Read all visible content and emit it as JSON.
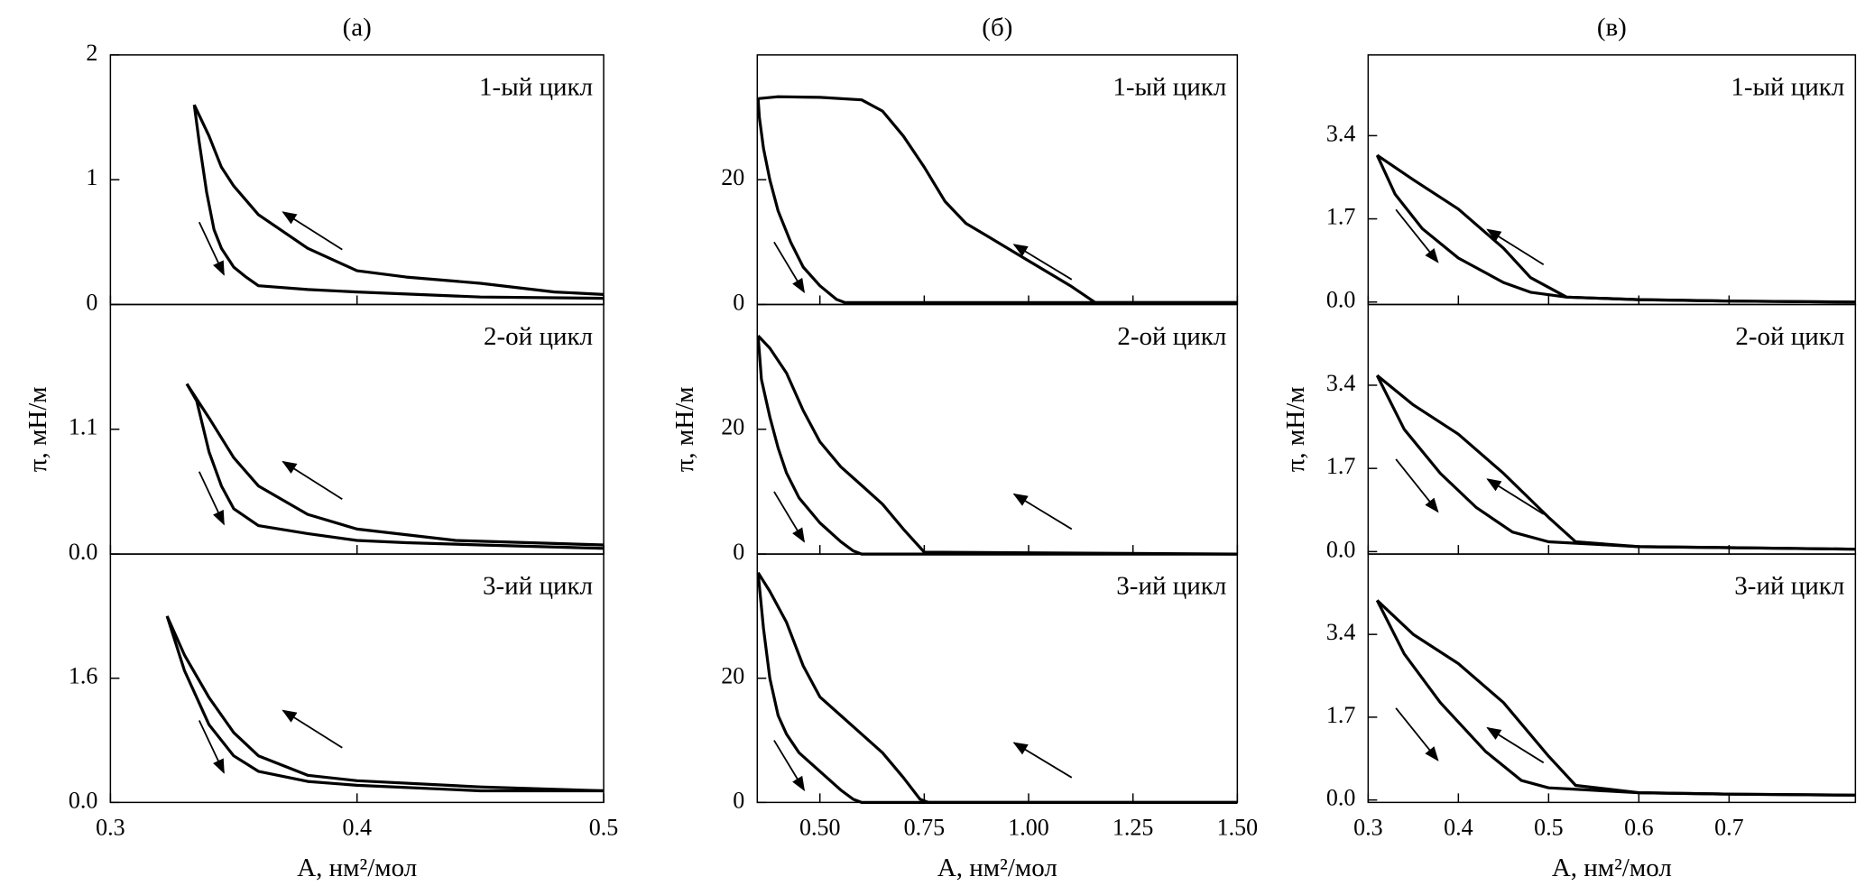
{
  "chart_data": [
    {
      "type": "line",
      "title": "(a)",
      "annotation": "1-ый цикл",
      "xlim": [
        0.3,
        0.5
      ],
      "ylim": [
        0,
        2
      ],
      "yticks": [
        0,
        1,
        2
      ],
      "series": [
        {
          "color": "#000000",
          "x": [
            0.5,
            0.45,
            0.4,
            0.38,
            0.36,
            0.355,
            0.35,
            0.345,
            0.342,
            0.339,
            0.336,
            0.334
          ],
          "values": [
            0.05,
            0.06,
            0.1,
            0.12,
            0.15,
            0.22,
            0.3,
            0.45,
            0.6,
            0.9,
            1.3,
            1.6
          ]
        },
        {
          "color": "#000000",
          "x": [
            0.334,
            0.34,
            0.345,
            0.35,
            0.36,
            0.38,
            0.4,
            0.42,
            0.45,
            0.48,
            0.5
          ],
          "values": [
            1.6,
            1.35,
            1.1,
            0.95,
            0.72,
            0.45,
            0.27,
            0.22,
            0.17,
            0.1,
            0.08
          ]
        }
      ]
    },
    {
      "type": "line",
      "title": "(б)",
      "annotation": "1-ый цикл",
      "xlim": [
        0.35,
        1.5
      ],
      "ylim": [
        0,
        40
      ],
      "yticks": [
        0,
        20
      ],
      "series": [
        {
          "color": "#000000",
          "x": [
            1.5,
            0.56,
            0.54,
            0.5,
            0.46,
            0.43,
            0.4,
            0.38,
            0.365,
            0.355,
            0.352
          ],
          "values": [
            0.3,
            0.3,
            0.8,
            3,
            6,
            10,
            15,
            20,
            25,
            30,
            33
          ]
        },
        {
          "color": "#000000",
          "x": [
            0.352,
            0.4,
            0.5,
            0.6,
            0.65,
            0.7,
            0.75,
            0.8,
            0.85,
            0.9,
            1.0,
            1.1,
            1.16,
            1.5
          ],
          "values": [
            33,
            33.3,
            33.2,
            32.8,
            31,
            27,
            22,
            16.5,
            13,
            11,
            7,
            3,
            0.3,
            0.3
          ]
        }
      ]
    },
    {
      "type": "line",
      "title": "(в)",
      "annotation": "1-ый цикл",
      "xlim": [
        0.3,
        0.84
      ],
      "ylim": [
        -0.05,
        5.05
      ],
      "yticks": [
        {
          "value": 0,
          "label": "0.0"
        },
        1.7,
        3.4
      ],
      "series": [
        {
          "color": "#000000",
          "x": [
            0.84,
            0.7,
            0.6,
            0.52,
            0.48,
            0.45,
            0.4,
            0.36,
            0.33,
            0.31
          ],
          "values": [
            0,
            0.02,
            0.05,
            0.1,
            0.2,
            0.4,
            0.9,
            1.5,
            2.2,
            3.0
          ]
        },
        {
          "color": "#000000",
          "x": [
            0.31,
            0.35,
            0.4,
            0.45,
            0.48,
            0.52,
            0.6,
            0.7,
            0.84
          ],
          "values": [
            3.0,
            2.5,
            1.9,
            1.1,
            0.5,
            0.1,
            0.05,
            0.02,
            0
          ]
        }
      ]
    },
    {
      "type": "line",
      "annotation": "2-ой цикл",
      "ylabel": "π, мН/м",
      "xlim": [
        0.3,
        0.5
      ],
      "ylim": [
        0,
        2.2
      ],
      "yticks": [
        {
          "value": 0,
          "label": "0.0"
        },
        1.1
      ],
      "series": [
        {
          "color": "#000000",
          "x": [
            0.5,
            0.45,
            0.42,
            0.4,
            0.38,
            0.36,
            0.35,
            0.345,
            0.34,
            0.335,
            0.331
          ],
          "values": [
            0.05,
            0.08,
            0.1,
            0.12,
            0.18,
            0.25,
            0.4,
            0.6,
            0.9,
            1.35,
            1.5
          ]
        },
        {
          "color": "#000000",
          "x": [
            0.331,
            0.34,
            0.35,
            0.36,
            0.38,
            0.4,
            0.44,
            0.5
          ],
          "values": [
            1.5,
            1.2,
            0.85,
            0.6,
            0.35,
            0.22,
            0.12,
            0.08
          ]
        }
      ]
    },
    {
      "type": "line",
      "annotation": "2-ой цикл",
      "ylabel": "π, мН/м",
      "xlim": [
        0.35,
        1.5
      ],
      "ylim": [
        0,
        40
      ],
      "yticks": [
        0,
        20
      ],
      "series": [
        {
          "color": "#000000",
          "x": [
            1.5,
            0.6,
            0.58,
            0.55,
            0.5,
            0.45,
            0.42,
            0.4,
            0.38,
            0.36,
            0.352
          ],
          "values": [
            0,
            0,
            0.5,
            2,
            5,
            9,
            13,
            17,
            22,
            28,
            35
          ]
        },
        {
          "color": "#000000",
          "x": [
            0.352,
            0.38,
            0.42,
            0.46,
            0.5,
            0.55,
            0.6,
            0.65,
            0.7,
            0.75,
            1.5
          ],
          "values": [
            35,
            33,
            29,
            23,
            18,
            14,
            11,
            8,
            4,
            0.3,
            0
          ]
        }
      ]
    },
    {
      "type": "line",
      "annotation": "2-ой цикл",
      "ylabel": "π, мН/м",
      "xlim": [
        0.3,
        0.84
      ],
      "ylim": [
        -0.05,
        5.05
      ],
      "yticks": [
        {
          "value": 0,
          "label": "0.0"
        },
        1.7,
        3.4
      ],
      "series": [
        {
          "color": "#000000",
          "x": [
            0.84,
            0.7,
            0.6,
            0.55,
            0.5,
            0.46,
            0.42,
            0.38,
            0.34,
            0.31
          ],
          "values": [
            0.05,
            0.08,
            0.1,
            0.15,
            0.2,
            0.4,
            0.9,
            1.6,
            2.5,
            3.6
          ]
        },
        {
          "color": "#000000",
          "x": [
            0.31,
            0.35,
            0.4,
            0.45,
            0.5,
            0.53,
            0.6,
            0.7,
            0.84
          ],
          "values": [
            3.6,
            3.0,
            2.4,
            1.6,
            0.7,
            0.2,
            0.1,
            0.08,
            0.05
          ]
        }
      ]
    },
    {
      "type": "line",
      "annotation": "3-ий цикл",
      "xlabel": "A, нм²/мол",
      "xlim": [
        0.3,
        0.5
      ],
      "ylim": [
        0,
        3.2
      ],
      "yticks": [
        {
          "value": 0,
          "label": "0.0"
        },
        1.6
      ],
      "xticks": [
        0.3,
        0.4,
        0.5
      ],
      "series": [
        {
          "color": "#000000",
          "x": [
            0.5,
            0.45,
            0.4,
            0.38,
            0.36,
            0.35,
            0.34,
            0.33,
            0.323
          ],
          "values": [
            0.15,
            0.15,
            0.22,
            0.27,
            0.4,
            0.6,
            1.0,
            1.7,
            2.4
          ]
        },
        {
          "color": "#000000",
          "x": [
            0.323,
            0.33,
            0.34,
            0.35,
            0.36,
            0.38,
            0.4,
            0.45,
            0.5
          ],
          "values": [
            2.4,
            1.9,
            1.35,
            0.9,
            0.6,
            0.35,
            0.28,
            0.2,
            0.15
          ]
        }
      ]
    },
    {
      "type": "line",
      "annotation": "3-ий цикл",
      "xlabel": "A, нм²/мол",
      "xlim": [
        0.35,
        1.5
      ],
      "ylim": [
        0,
        40
      ],
      "yticks": [
        0,
        20
      ],
      "xticks": [
        {
          "value": 0.5,
          "label": "0.50"
        },
        0.75,
        {
          "value": 1,
          "label": "1.00"
        },
        1.25,
        {
          "value": 1.5,
          "label": "1.50"
        }
      ],
      "series": [
        {
          "color": "#000000",
          "x": [
            1.5,
            0.6,
            0.58,
            0.55,
            0.5,
            0.45,
            0.42,
            0.4,
            0.38,
            0.365,
            0.352
          ],
          "values": [
            0,
            0,
            0.5,
            2,
            5,
            8,
            11,
            14,
            20,
            28,
            37
          ]
        },
        {
          "color": "#000000",
          "x": [
            0.352,
            0.38,
            0.42,
            0.46,
            0.5,
            0.55,
            0.6,
            0.65,
            0.7,
            0.74,
            0.76,
            1.5
          ],
          "values": [
            37,
            34,
            29,
            22,
            17,
            14,
            11,
            8,
            4,
            0.5,
            0,
            0
          ]
        }
      ]
    },
    {
      "type": "line",
      "annotation": "3-ий цикл",
      "xlabel": "A, нм²/мол",
      "xlim": [
        0.3,
        0.84
      ],
      "ylim": [
        -0.05,
        5.05
      ],
      "yticks": [
        {
          "value": 0,
          "label": "0.0"
        },
        1.7,
        3.4
      ],
      "xticks": [
        0.3,
        0.4,
        0.5,
        0.6,
        0.7
      ],
      "series": [
        {
          "color": "#000000",
          "x": [
            0.84,
            0.7,
            0.6,
            0.55,
            0.5,
            0.47,
            0.43,
            0.38,
            0.34,
            0.31
          ],
          "values": [
            0.1,
            0.12,
            0.15,
            0.2,
            0.25,
            0.4,
            1.0,
            2.0,
            3.0,
            4.1
          ]
        },
        {
          "color": "#000000",
          "x": [
            0.31,
            0.35,
            0.4,
            0.45,
            0.5,
            0.53,
            0.6,
            0.7,
            0.84
          ],
          "values": [
            4.1,
            3.4,
            2.8,
            2.0,
            0.9,
            0.3,
            0.15,
            0.12,
            0.1
          ]
        }
      ]
    }
  ]
}
